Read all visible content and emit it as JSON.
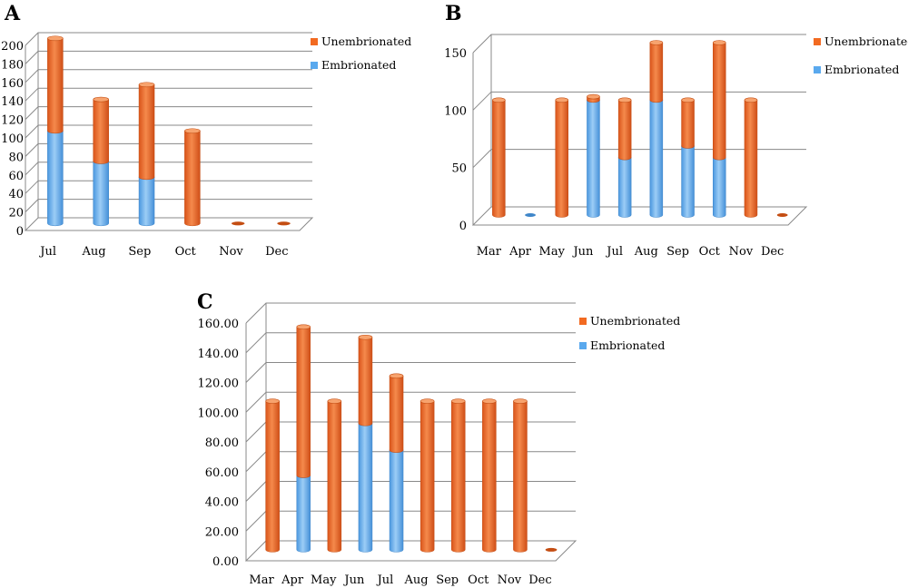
{
  "colors": {
    "unembrionated": "#f26a21",
    "unembrionated_dark": "#c44d12",
    "embrionated": "#5aa9ee",
    "embrionated_dark": "#3f86c9",
    "grid": "#888888"
  },
  "chart_data": [
    {
      "panel": "A",
      "type": "bar",
      "stacked": true,
      "style": "3d-cylinder",
      "categories": [
        "Jul",
        "Aug",
        "Sep",
        "Oct",
        "Nov",
        "Dec"
      ],
      "series": [
        {
          "name": "Embrionated",
          "values": [
            100,
            67,
            50,
            0,
            0,
            0
          ]
        },
        {
          "name": "Unembrionated",
          "values": [
            100,
            67,
            100,
            100,
            0,
            0
          ]
        }
      ],
      "ylim": [
        0,
        200
      ],
      "yticks": [
        0,
        20,
        40,
        60,
        80,
        100,
        120,
        140,
        160,
        180,
        200
      ],
      "ytick_labels": [
        "0",
        "20",
        "40",
        "60",
        "80",
        "100",
        "120",
        "140",
        "160",
        "180",
        "200"
      ],
      "grid": true,
      "legend": "top-right"
    },
    {
      "panel": "B",
      "type": "bar",
      "stacked": true,
      "style": "3d-cylinder",
      "categories": [
        "Mar",
        "Apr",
        "May",
        "Jun",
        "Jul",
        "Aug",
        "Sep",
        "Oct",
        "Nov",
        "Dec"
      ],
      "series": [
        {
          "name": "Embrionated",
          "values": [
            0,
            0,
            0,
            100,
            50,
            100,
            60,
            50,
            0,
            0
          ]
        },
        {
          "name": "Unembrionated",
          "values": [
            100,
            0,
            100,
            3,
            50,
            50,
            40,
            100,
            100,
            0
          ]
        }
      ],
      "ylim": [
        0,
        150
      ],
      "yticks": [
        0,
        50,
        100,
        150
      ],
      "ytick_labels": [
        "0",
        "50",
        "100",
        "150"
      ],
      "grid": true,
      "legend": "top-right"
    },
    {
      "panel": "C",
      "type": "bar",
      "stacked": true,
      "style": "3d-cylinder",
      "categories": [
        "Mar",
        "Apr",
        "May",
        "Jun",
        "Jul",
        "Aug",
        "Sep",
        "Oct",
        "Nov",
        "Dec"
      ],
      "series": [
        {
          "name": "Embrionated",
          "values": [
            0,
            50,
            0,
            85,
            67,
            0,
            0,
            0,
            0,
            0
          ]
        },
        {
          "name": "Unembrionated",
          "values": [
            100,
            100,
            100,
            58,
            50,
            100,
            100,
            100,
            100,
            0
          ]
        }
      ],
      "ylim": [
        0,
        160
      ],
      "yticks": [
        0,
        20,
        40,
        60,
        80,
        100,
        120,
        140,
        160
      ],
      "ytick_labels": [
        "0.00",
        "20.00",
        "40.00",
        "60.00",
        "80.00",
        "100.00",
        "120.00",
        "140.00",
        "160.00"
      ],
      "grid": true,
      "legend": "top-right"
    }
  ]
}
